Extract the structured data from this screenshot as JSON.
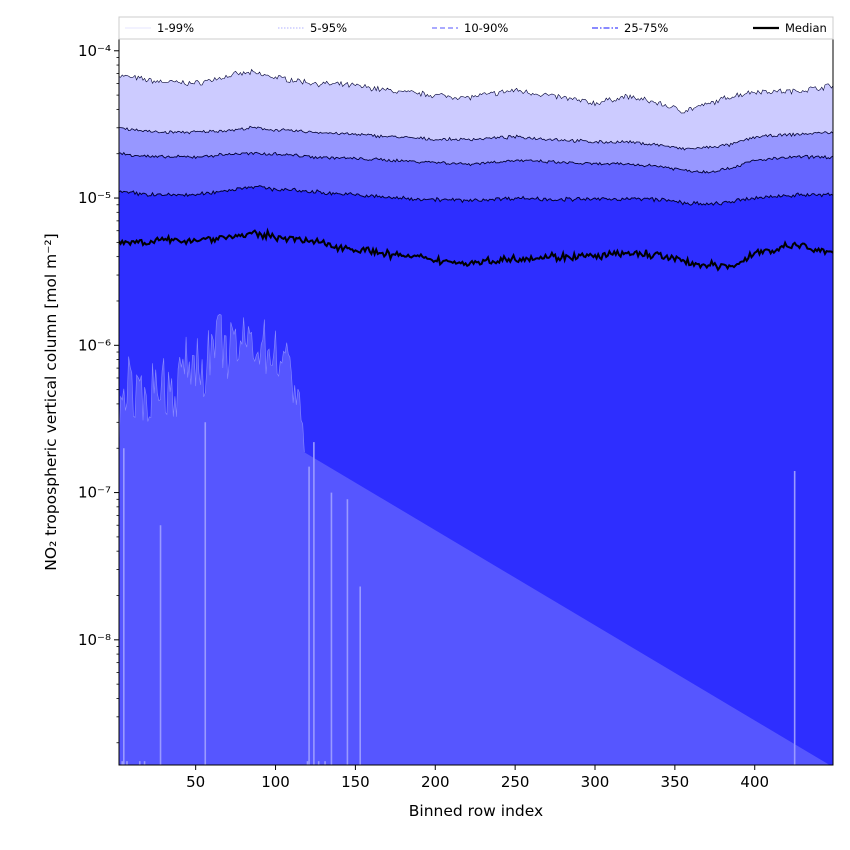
{
  "chart_data": {
    "type": "area",
    "title": "",
    "xlabel": "Binned row index",
    "ylabel": "NO₂ tropospheric vertical column [mol m⁻²]",
    "xlim": [
      2,
      449
    ],
    "ylim_log10": [
      -8.85,
      -3.92
    ],
    "yscale": "log",
    "grid": false,
    "legend_placement": "top",
    "x_ticks": [
      50,
      100,
      150,
      200,
      250,
      300,
      350,
      400
    ],
    "x_tick_labels": [
      "50",
      "100",
      "150",
      "200",
      "250",
      "300",
      "350",
      "400"
    ],
    "y_ticks_log10": [
      -8,
      -7,
      -6,
      -5,
      -4
    ],
    "y_tick_labels": [
      "10⁻⁸",
      "10⁻⁷",
      "10⁻⁶",
      "10⁻⁵",
      "10⁻⁴"
    ],
    "legend": [
      {
        "label": "1-99%",
        "style": "solid-thin",
        "color": "#ccccff"
      },
      {
        "label": "5-95%",
        "style": "dotted",
        "color": "#9999ff"
      },
      {
        "label": "10-90%",
        "style": "dashed",
        "color": "#7777ff"
      },
      {
        "label": "25-75%",
        "style": "dashdot",
        "color": "#4444ff"
      },
      {
        "label": "Median",
        "style": "solid-thick",
        "color": "#000000"
      }
    ],
    "colors": {
      "band_1_99": "#cccbff",
      "band_5_95": "#9797ff",
      "band_10_90": "#6565ff",
      "band_25_75": "#2e2eff",
      "low_region": "#5656ff",
      "median": "#000000"
    },
    "control_x": [
      2,
      25,
      50,
      75,
      85,
      100,
      125,
      150,
      175,
      200,
      220,
      250,
      275,
      300,
      320,
      340,
      355,
      370,
      385,
      400,
      425,
      449
    ],
    "series": [
      {
        "name": "1-99% upper",
        "values": [
          6.8e-05,
          6.2e-05,
          6e-05,
          6.9e-05,
          7.1e-05,
          6.6e-05,
          6e-05,
          5.8e-05,
          5.3e-05,
          5e-05,
          4.8e-05,
          5.4e-05,
          4.9e-05,
          4.4e-05,
          4.9e-05,
          4.4e-05,
          3.9e-05,
          4.3e-05,
          4.9e-05,
          5.3e-05,
          5.3e-05,
          5.8e-05
        ]
      },
      {
        "name": "5-95% upper",
        "values": [
          3e-05,
          2.8e-05,
          2.8e-05,
          2.9e-05,
          3e-05,
          2.9e-05,
          2.8e-05,
          2.7e-05,
          2.6e-05,
          2.5e-05,
          2.5e-05,
          2.6e-05,
          2.5e-05,
          2.4e-05,
          2.4e-05,
          2.3e-05,
          2.15e-05,
          2.2e-05,
          2.3e-05,
          2.6e-05,
          2.7e-05,
          2.8e-05
        ]
      },
      {
        "name": "10-90% upper",
        "values": [
          2e-05,
          1.9e-05,
          1.9e-05,
          2e-05,
          2e-05,
          2e-05,
          1.9e-05,
          1.85e-05,
          1.8e-05,
          1.75e-05,
          1.7e-05,
          1.8e-05,
          1.75e-05,
          1.7e-05,
          1.7e-05,
          1.65e-05,
          1.55e-05,
          1.5e-05,
          1.6e-05,
          1.8e-05,
          1.9e-05,
          1.9e-05
        ]
      },
      {
        "name": "25-75% upper",
        "values": [
          1.1e-05,
          1.05e-05,
          1.05e-05,
          1.15e-05,
          1.2e-05,
          1.15e-05,
          1.1e-05,
          1.05e-05,
          1e-05,
          9.8e-06,
          9.6e-06,
          1e-05,
          9.8e-06,
          9.8e-06,
          9.9e-06,
          9.8e-06,
          9.3e-06,
          9e-06,
          9.4e-06,
          1e-05,
          1.05e-05,
          1.05e-05
        ]
      },
      {
        "name": "Median",
        "values": [
          5e-06,
          5.1e-06,
          5.2e-06,
          5.5e-06,
          5.7e-06,
          5.5e-06,
          5e-06,
          4.5e-06,
          4.1e-06,
          3.8e-06,
          3.6e-06,
          3.9e-06,
          4e-06,
          4e-06,
          4.2e-06,
          4.1e-06,
          3.7e-06,
          3.5e-06,
          3.4e-06,
          4.2e-06,
          4.8e-06,
          4.2e-06
        ]
      }
    ],
    "low_region_envelope": {
      "x": [
        2,
        5,
        8,
        12,
        18,
        22,
        28,
        33,
        38,
        42,
        48,
        55,
        60,
        65,
        70,
        78,
        85,
        92,
        100,
        105,
        110,
        115,
        118
      ],
      "values": [
        3e-07,
        5e-07,
        6e-07,
        4e-07,
        4e-07,
        5e-07,
        6e-07,
        5e-07,
        5e-07,
        7e-07,
        8e-07,
        7e-07,
        9e-07,
        1.1e-06,
        9e-07,
        1e-06,
        1.1e-06,
        1e-06,
        9e-07,
        8e-07,
        6e-07,
        5e-07,
        2e-07
      ]
    },
    "spikes": [
      {
        "x": 4,
        "value": 1.5e-09
      },
      {
        "x": 5,
        "value": 2e-07
      },
      {
        "x": 7,
        "value": 1.5e-09
      },
      {
        "x": 15,
        "value": 1.5e-09
      },
      {
        "x": 18,
        "value": 1.5e-09
      },
      {
        "x": 28,
        "value": 6e-08
      },
      {
        "x": 56,
        "value": 3e-07
      },
      {
        "x": 120,
        "value": 1.5e-09
      },
      {
        "x": 121,
        "value": 1.5e-07
      },
      {
        "x": 124,
        "value": 2.2e-07
      },
      {
        "x": 127,
        "value": 1.5e-09
      },
      {
        "x": 131,
        "value": 1.5e-09
      },
      {
        "x": 135,
        "value": 1e-07
      },
      {
        "x": 145,
        "value": 9e-08
      },
      {
        "x": 153,
        "value": 2.3e-08
      },
      {
        "x": 425,
        "value": 1.4e-07
      }
    ]
  }
}
